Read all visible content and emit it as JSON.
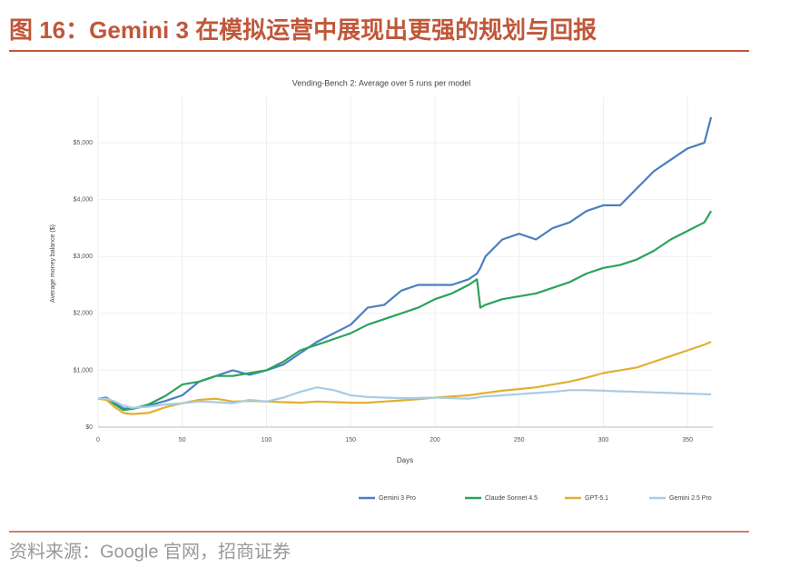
{
  "figure_title": "图 16：Gemini 3 在模拟运营中展现出更强的规划与回报",
  "source": "资料来源：Google 官网，招商证券",
  "chart_data": {
    "type": "line",
    "title": "Vending-Bench 2: Average over 5 runs per model",
    "x_label": "Days",
    "y_label": "Average money balance ($)",
    "x": [
      0,
      5,
      10,
      15,
      20,
      30,
      40,
      50,
      60,
      70,
      80,
      90,
      100,
      110,
      120,
      130,
      140,
      150,
      160,
      170,
      180,
      190,
      200,
      210,
      220,
      225,
      227,
      230,
      240,
      250,
      260,
      270,
      280,
      290,
      300,
      310,
      320,
      330,
      340,
      350,
      360,
      364
    ],
    "series": [
      {
        "name": "Gemini 3 Pro",
        "color": "#4a7fc1",
        "values": [
          500,
          520,
          420,
          330,
          320,
          380,
          460,
          560,
          800,
          900,
          1000,
          920,
          1000,
          1100,
          1300,
          1500,
          1650,
          1800,
          2100,
          2150,
          2400,
          2500,
          2500,
          2500,
          2600,
          2700,
          2800,
          3000,
          3300,
          3400,
          3300,
          3500,
          3600,
          3800,
          3900,
          3900,
          4200,
          4500,
          4700,
          4900,
          5000,
          5450
        ]
      },
      {
        "name": "Claude Sonnet 4.5",
        "color": "#2aa35a",
        "values": [
          500,
          510,
          400,
          300,
          320,
          400,
          550,
          750,
          800,
          900,
          900,
          950,
          1000,
          1150,
          1350,
          1450,
          1550,
          1650,
          1800,
          1900,
          2000,
          2100,
          2250,
          2350,
          2500,
          2600,
          2100,
          2150,
          2250,
          2300,
          2350,
          2450,
          2550,
          2700,
          2800,
          2850,
          2950,
          3100,
          3300,
          3450,
          3600,
          3800
        ]
      },
      {
        "name": "GPT-5.1",
        "color": "#e0b030",
        "values": [
          500,
          480,
          350,
          250,
          230,
          250,
          350,
          420,
          480,
          500,
          450,
          460,
          450,
          440,
          430,
          450,
          440,
          430,
          430,
          450,
          470,
          490,
          520,
          540,
          560,
          580,
          590,
          600,
          640,
          670,
          700,
          750,
          800,
          870,
          950,
          1000,
          1050,
          1150,
          1250,
          1350,
          1450,
          1500
        ]
      },
      {
        "name": "Gemini 2.5 Pro",
        "color": "#a8cbe6",
        "values": [
          500,
          500,
          450,
          380,
          340,
          360,
          400,
          420,
          450,
          440,
          420,
          480,
          450,
          520,
          620,
          700,
          650,
          560,
          530,
          520,
          510,
          515,
          520,
          510,
          500,
          520,
          530,
          540,
          560,
          580,
          600,
          620,
          650,
          650,
          640,
          630,
          620,
          610,
          600,
          590,
          580,
          575
        ]
      }
    ],
    "xlim": [
      0,
      365
    ],
    "ylim": [
      0,
      5800
    ],
    "xticks": [
      0,
      50,
      100,
      150,
      200,
      250,
      300,
      350
    ],
    "yticks": [
      {
        "value": 0,
        "label": "$0"
      },
      {
        "value": 1000,
        "label": "$1,000"
      },
      {
        "value": 2000,
        "label": "$2,000"
      },
      {
        "value": 3000,
        "label": "$3,000"
      },
      {
        "value": 4000,
        "label": "$4,000"
      },
      {
        "value": 5000,
        "label": "$5,000"
      }
    ],
    "grid": true,
    "legend": "bottom"
  }
}
